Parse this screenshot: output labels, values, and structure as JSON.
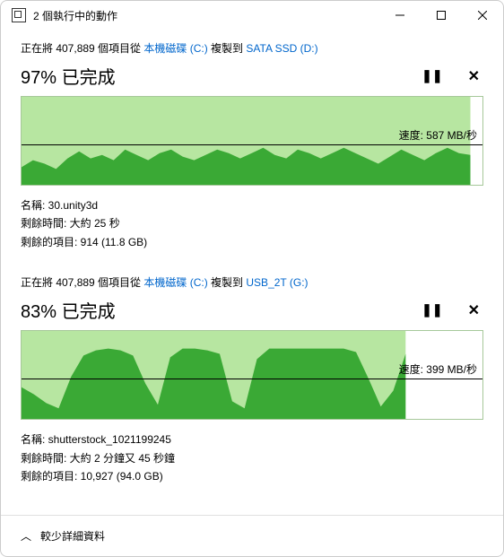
{
  "window": {
    "title": "2 個執行中的動作",
    "colors": {
      "link": "#0066cc",
      "chart_light": "#b7e6a1",
      "chart_dark": "#3aa935",
      "chart_border": "#a6c89a",
      "divider": "#e0e0e0"
    }
  },
  "ops": [
    {
      "header_prefix": "正在將 407,889 個項目從 ",
      "source": "本機磁碟 (C:)",
      "header_mid": " 複製到 ",
      "dest": "SATA SSD (D:)",
      "percent_text": "97% 已完成",
      "chart": {
        "progress_pct": 97,
        "speedline_pct": 54,
        "speed_label": "速度: 587 MB/秒",
        "area_height_pct": 38,
        "wave": [
          20,
          28,
          24,
          18,
          30,
          38,
          30,
          34,
          28,
          40,
          34,
          28,
          36,
          40,
          32,
          28,
          34,
          40,
          36,
          30,
          36,
          42,
          34,
          30,
          40,
          36,
          30,
          36,
          42,
          36,
          30,
          24,
          32,
          40,
          34,
          28,
          36,
          42,
          36,
          34
        ]
      },
      "details": [
        {
          "lbl": "名稱: ",
          "val": "30.unity3d"
        },
        {
          "lbl": "剩餘時間: ",
          "val": "大約 25 秒"
        },
        {
          "lbl": "剩餘的項目: ",
          "val": "914 (11.8 GB)"
        }
      ]
    },
    {
      "header_prefix": "正在將 407,889 個項目從 ",
      "source": "本機磁碟 (C:)",
      "header_mid": " 複製到 ",
      "dest": "USB_2T (G:)",
      "percent_text": "83% 已完成",
      "chart": {
        "progress_pct": 83,
        "speedline_pct": 54,
        "speed_label": "速度: 399 MB/秒",
        "area_height_pct": 38,
        "wave": [
          36,
          28,
          18,
          12,
          48,
          72,
          78,
          80,
          78,
          72,
          40,
          16,
          70,
          80,
          80,
          78,
          74,
          20,
          12,
          68,
          80,
          80,
          80,
          80,
          80,
          80,
          80,
          76,
          46,
          14,
          32,
          74
        ]
      },
      "details": [
        {
          "lbl": "名稱: ",
          "val": "shutterstock_1021199245"
        },
        {
          "lbl": "剩餘時間: ",
          "val": "大約 2 分鐘又 45 秒鐘"
        },
        {
          "lbl": "剩餘的項目: ",
          "val": "10,927 (94.0 GB)"
        }
      ]
    }
  ],
  "footer": {
    "text": "較少詳細資料",
    "chevron": "︿"
  }
}
